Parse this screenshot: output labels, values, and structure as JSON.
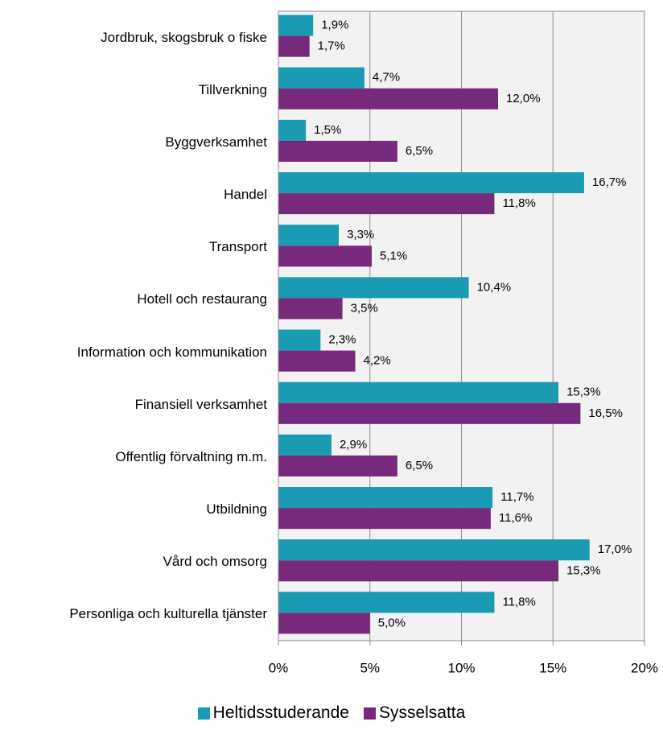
{
  "chart_data": {
    "type": "bar",
    "orientation": "horizontal",
    "categories": [
      "Jordbruk, skogsbruk o fiske",
      "Tillverkning",
      "Byggverksamhet",
      "Handel",
      "Transport",
      "Hotell och restaurang",
      "Information och kommunikation",
      "Finansiell verksamhet",
      "Offentlig förvaltning m.m.",
      "Utbildning",
      "Vård och omsorg",
      "Personliga och kulturella tjänster"
    ],
    "series": [
      {
        "name": "Heltidsstuderande",
        "color": "#1a9ab3",
        "values": [
          1.9,
          4.7,
          1.5,
          16.7,
          3.3,
          10.4,
          2.3,
          15.3,
          2.9,
          11.7,
          17.0,
          11.8
        ],
        "value_labels": [
          "1,9%",
          "4,7%",
          "1,5%",
          "16,7%",
          "3,3%",
          "10,4%",
          "2,3%",
          "15,3%",
          "2,9%",
          "11,7%",
          "17,0%",
          "11,8%"
        ]
      },
      {
        "name": "Sysselsatta",
        "color": "#772a7b",
        "values": [
          1.7,
          12.0,
          6.5,
          11.8,
          5.1,
          3.5,
          4.2,
          16.5,
          6.5,
          11.6,
          15.3,
          5.0
        ],
        "value_labels": [
          "1,7%",
          "12,0%",
          "6,5%",
          "11,8%",
          "5,1%",
          "3,5%",
          "4,2%",
          "16,5%",
          "6,5%",
          "11,6%",
          "15,3%",
          "5,0%"
        ]
      }
    ],
    "xlim": [
      0,
      20
    ],
    "xticks": [
      {
        "value": 0,
        "label": "0%"
      },
      {
        "value": 5,
        "label": "5%"
      },
      {
        "value": 10,
        "label": "10%"
      },
      {
        "value": 15,
        "label": "15%"
      },
      {
        "value": 20,
        "label": "20%"
      }
    ],
    "grid": true,
    "legend": "bottom"
  }
}
